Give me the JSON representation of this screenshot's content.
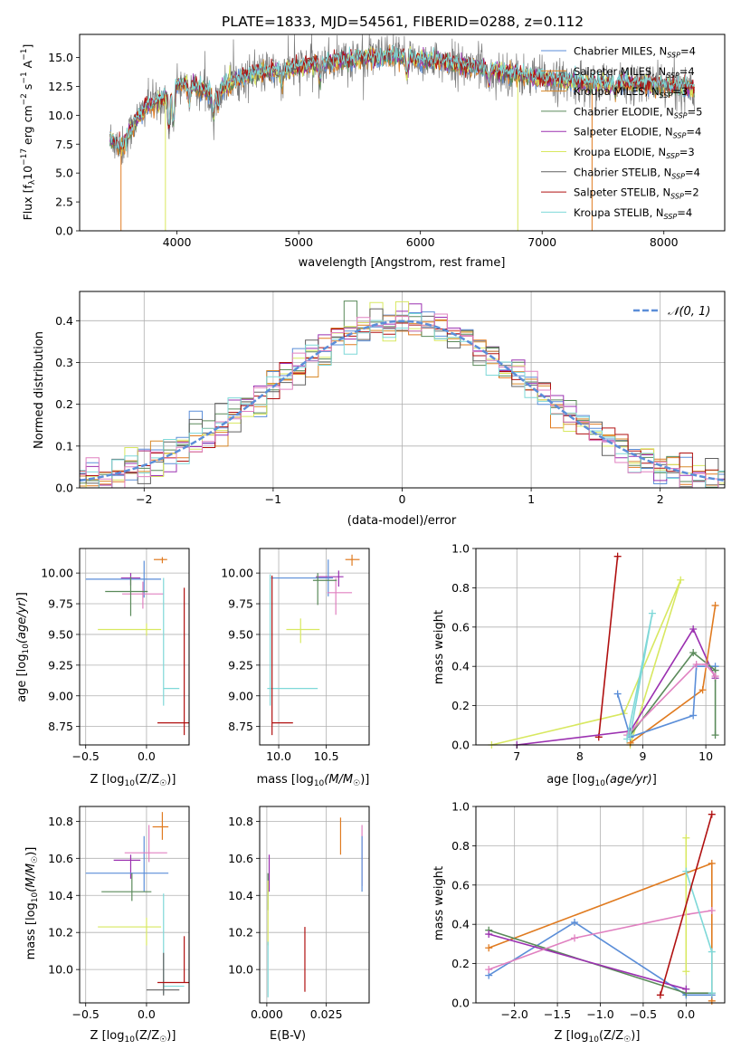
{
  "figure_title": "PLATE=1833, MJD=54561, FIBERID=0288, z=0.112",
  "colors": {
    "chabrier_miles": "#5b8ed8",
    "salpeter_miles": "#e07b20",
    "kroupa_miles": "#d98a2a",
    "chabrier_elodie": "#5a8a5a",
    "salpeter_elodie": "#9b30b0",
    "kroupa_elodie": "#d8e860",
    "chabrier_stelib": "#606060",
    "salpeter_stelib": "#b01010",
    "kroupa_stelib": "#7ed8d8",
    "pink": "#e080c0",
    "grey_spectrum": "#7a7a7a"
  },
  "chart_data": [
    {
      "id": "spectrum",
      "type": "line",
      "xlabel": "wavelength [Angstrom, rest frame]",
      "ylabel": "Flux [f_λ 10^-17 erg cm^-2 s^-1 A^-1]",
      "xlim": [
        3200,
        8500
      ],
      "ylim": [
        0,
        17
      ],
      "xticks": [
        4000,
        5000,
        6000,
        7000,
        8000
      ],
      "yticks": [
        0.0,
        2.5,
        5.0,
        7.5,
        10.0,
        12.5,
        15.0
      ],
      "legend_position": "upper-right",
      "legend": [
        {
          "label": "Chabrier MILES, N_SSP=4",
          "color": "#5b8ed8"
        },
        {
          "label": "Salpeter MILES, N_SSP=4",
          "color": "#e07b20"
        },
        {
          "label": "Kroupa MILES, N_SSP=3",
          "color": "#d98a2a"
        },
        {
          "label": "Chabrier ELODIE, N_SSP=5",
          "color": "#5a8a5a"
        },
        {
          "label": "Salpeter ELODIE, N_SSP=4",
          "color": "#9b30b0"
        },
        {
          "label": "Kroupa ELODIE, N_SSP=3",
          "color": "#d8e860"
        },
        {
          "label": "Chabrier STELIB, N_SSP=4",
          "color": "#606060"
        },
        {
          "label": "Salpeter STELIB, N_SSP=2",
          "color": "#b01010"
        },
        {
          "label": "Kroupa STELIB, N_SSP=4",
          "color": "#7ed8d8"
        }
      ],
      "continuum": [
        [
          3450,
          8.0
        ],
        [
          3550,
          7.2
        ],
        [
          3650,
          9.3
        ],
        [
          3750,
          10.8
        ],
        [
          3850,
          11.2
        ],
        [
          3950,
          12.3
        ],
        [
          4050,
          12.8
        ],
        [
          4150,
          12.4
        ],
        [
          4300,
          11.9
        ],
        [
          4500,
          13.2
        ],
        [
          4700,
          13.7
        ],
        [
          4860,
          13.8
        ],
        [
          5000,
          14.2
        ],
        [
          5200,
          14.5
        ],
        [
          5400,
          14.8
        ],
        [
          5600,
          15.0
        ],
        [
          5800,
          15.1
        ],
        [
          6000,
          14.9
        ],
        [
          6200,
          14.6
        ],
        [
          6400,
          14.2
        ],
        [
          6563,
          14.0
        ],
        [
          6700,
          13.7
        ],
        [
          6900,
          13.3
        ],
        [
          7100,
          13.1
        ],
        [
          7300,
          12.8
        ],
        [
          7600,
          12.8
        ],
        [
          7900,
          12.7
        ],
        [
          8250,
          12.3
        ]
      ]
    },
    {
      "id": "residuals",
      "type": "histogram",
      "xlabel": "(data-model)/error",
      "ylabel": "Normed distribution",
      "xlim": [
        -2.5,
        2.5
      ],
      "ylim": [
        0,
        0.47
      ],
      "xticks": [
        -2,
        -1,
        0,
        1,
        2
      ],
      "yticks": [
        0.0,
        0.1,
        0.2,
        0.3,
        0.4
      ],
      "legend": [
        {
          "label": "N(0,1)",
          "color": "#5b8ed8",
          "style": "dashed"
        }
      ],
      "legend_position": "upper-right",
      "bin_width": 0.1
    },
    {
      "id": "age_vs_Z",
      "type": "scatter",
      "xlabel": "Z [log10(Z/Z☉)]",
      "ylabel": "age [log10(age/yr)]",
      "xlim": [
        -0.55,
        0.35
      ],
      "ylim": [
        8.6,
        10.2
      ],
      "xticks": [
        -0.5,
        0.0
      ],
      "yticks": [
        8.75,
        9.0,
        9.25,
        9.5,
        9.75,
        10.0
      ],
      "points": [
        {
          "x": 0.13,
          "y": 10.11,
          "xerr": [
            0.07,
            0.04
          ],
          "yerr": [
            0.03,
            0.02
          ],
          "color": "#e07b20"
        },
        {
          "x": -0.13,
          "y": 9.96,
          "xerr": [
            0.08,
            0.08
          ],
          "yerr": [
            0.06,
            0.04
          ],
          "color": "#9b30b0"
        },
        {
          "x": -0.02,
          "y": 9.95,
          "xerr": [
            0.48,
            0.14
          ],
          "yerr": [
            0.15,
            0.15
          ],
          "color": "#5b8ed8"
        },
        {
          "x": -0.03,
          "y": 9.83,
          "xerr": [
            0.17,
            0.17
          ],
          "yerr": [
            0.12,
            0.1
          ],
          "color": "#e080c0"
        },
        {
          "x": -0.13,
          "y": 9.85,
          "xerr": [
            0.21,
            0.14
          ],
          "yerr": [
            0.2,
            0.12
          ],
          "color": "#5a8a5a"
        },
        {
          "x": 0.0,
          "y": 9.54,
          "xerr": [
            0.4,
            0.12
          ],
          "yerr": [
            0.05,
            0.05
          ],
          "color": "#d8e860"
        },
        {
          "x": 0.14,
          "y": 9.06,
          "xerr": [
            0.0,
            0.13
          ],
          "yerr": [
            0.14,
            0.9
          ],
          "color": "#7ed8d8"
        },
        {
          "x": 0.31,
          "y": 8.78,
          "xerr": [
            0.22,
            0.05
          ],
          "yerr": [
            0.1,
            1.1
          ],
          "color": "#b01010"
        }
      ]
    },
    {
      "id": "age_vs_mass",
      "type": "scatter",
      "xlabel": "mass [log10(M/M☉)]",
      "ylabel": "",
      "xlim": [
        9.8,
        10.95
      ],
      "ylim": [
        8.6,
        10.2
      ],
      "xticks": [
        10.0,
        10.5
      ],
      "yticks": [
        8.75,
        9.0,
        9.25,
        9.5,
        9.75,
        10.0
      ],
      "points": [
        {
          "x": 10.77,
          "y": 10.11,
          "xerr": [
            0.07,
            0.08
          ],
          "yerr": [
            0.05,
            0.04
          ],
          "color": "#e07b20"
        },
        {
          "x": 10.63,
          "y": 9.97,
          "xerr": [
            0.24,
            0.05
          ],
          "yerr": [
            0.08,
            0.05
          ],
          "color": "#9b30b0"
        },
        {
          "x": 10.52,
          "y": 9.96,
          "xerr": [
            0.6,
            0.05
          ],
          "yerr": [
            0.15,
            0.15
          ],
          "color": "#5b8ed8"
        },
        {
          "x": 10.6,
          "y": 9.84,
          "xerr": [
            0.09,
            0.17
          ],
          "yerr": [
            0.18,
            0.12
          ],
          "color": "#e080c0"
        },
        {
          "x": 10.41,
          "y": 9.94,
          "xerr": [
            0.05,
            0.2
          ],
          "yerr": [
            0.2,
            0.06
          ],
          "color": "#5a8a5a"
        },
        {
          "x": 10.23,
          "y": 9.54,
          "xerr": [
            0.15,
            0.2
          ],
          "yerr": [
            0.11,
            0.09
          ],
          "color": "#d8e860"
        },
        {
          "x": 9.91,
          "y": 9.06,
          "xerr": [
            0.03,
            0.5
          ],
          "yerr": [
            0.14,
            0.93
          ],
          "color": "#7ed8d8"
        },
        {
          "x": 9.93,
          "y": 8.78,
          "xerr": [
            0.0,
            0.22
          ],
          "yerr": [
            0.1,
            1.2
          ],
          "color": "#b01010"
        }
      ]
    },
    {
      "id": "weight_vs_age",
      "type": "line",
      "xlabel": "age [log10(age/yr)]",
      "ylabel": "mass weight",
      "xlim": [
        6.35,
        10.3
      ],
      "ylim": [
        0,
        1
      ],
      "xticks": [
        7,
        8,
        9,
        10
      ],
      "yticks": [
        0.0,
        0.2,
        0.4,
        0.6,
        0.8,
        1.0
      ],
      "series": [
        {
          "color": "#d8e860",
          "points": [
            [
              6.6,
              0.0
            ],
            [
              8.7,
              0.16
            ],
            [
              9.6,
              0.84
            ],
            [
              8.8,
              0.0
            ]
          ]
        },
        {
          "color": "#b01010",
          "points": [
            [
              8.3,
              0.04
            ],
            [
              8.6,
              0.96
            ]
          ]
        },
        {
          "color": "#9b30b0",
          "points": [
            [
              7.0,
              0.0
            ],
            [
              8.8,
              0.07
            ],
            [
              9.8,
              0.59
            ],
            [
              10.15,
              0.34
            ]
          ]
        },
        {
          "color": "#e07b20",
          "points": [
            [
              8.8,
              0.01
            ],
            [
              9.95,
              0.28
            ],
            [
              10.15,
              0.71
            ]
          ]
        },
        {
          "color": "#5b8ed8",
          "points": [
            [
              8.6,
              0.26
            ],
            [
              8.8,
              0.04
            ],
            [
              9.8,
              0.15
            ],
            [
              9.85,
              0.4
            ],
            [
              10.15,
              0.4
            ]
          ]
        },
        {
          "color": "#5a8a5a",
          "points": [
            [
              8.8,
              0.05
            ],
            [
              9.8,
              0.47
            ],
            [
              10.15,
              0.38
            ],
            [
              10.15,
              0.05
            ]
          ]
        },
        {
          "color": "#e080c0",
          "points": [
            [
              8.75,
              0.05
            ],
            [
              9.85,
              0.41
            ],
            [
              10.0,
              0.41
            ],
            [
              10.15,
              0.35
            ]
          ]
        },
        {
          "color": "#7ed8d8",
          "points": [
            [
              8.8,
              0.05
            ],
            [
              9.15,
              0.67
            ],
            [
              8.75,
              0.03
            ]
          ]
        }
      ]
    },
    {
      "id": "mass_vs_Z",
      "type": "scatter",
      "xlabel": "Z [log10(Z/Z☉)]",
      "ylabel": "mass [log10(M/M☉)]",
      "xlim": [
        -0.55,
        0.35
      ],
      "ylim": [
        9.82,
        10.88
      ],
      "xticks": [
        -0.5,
        0.0
      ],
      "yticks": [
        10.0,
        10.2,
        10.4,
        10.6,
        10.8
      ],
      "points": [
        {
          "x": 0.13,
          "y": 10.77,
          "xerr": [
            0.08,
            0.05
          ],
          "yerr": [
            0.07,
            0.08
          ],
          "color": "#e07b20"
        },
        {
          "x": -0.13,
          "y": 10.59,
          "xerr": [
            0.14,
            0.08
          ],
          "yerr": [
            0.1,
            0.03
          ],
          "color": "#9b30b0"
        },
        {
          "x": -0.02,
          "y": 10.52,
          "xerr": [
            0.48,
            0.2
          ],
          "yerr": [
            0.1,
            0.2
          ],
          "color": "#5b8ed8"
        },
        {
          "x": 0.02,
          "y": 10.63,
          "xerr": [
            0.2,
            0.15
          ],
          "yerr": [
            0.05,
            0.15
          ],
          "color": "#e080c0"
        },
        {
          "x": -0.12,
          "y": 10.42,
          "xerr": [
            0.25,
            0.16
          ],
          "yerr": [
            0.05,
            0.1
          ],
          "color": "#5a8a5a"
        },
        {
          "x": 0.0,
          "y": 10.23,
          "xerr": [
            0.4,
            0.12
          ],
          "yerr": [
            0.1,
            0.05
          ],
          "color": "#d8e860"
        },
        {
          "x": 0.14,
          "y": 9.91,
          "xerr": [
            0.0,
            0.17
          ],
          "yerr": [
            0.04,
            0.5
          ],
          "color": "#7ed8d8"
        },
        {
          "x": 0.14,
          "y": 9.89,
          "xerr": [
            0.14,
            0.13
          ],
          "yerr": [
            0.03,
            0.2
          ],
          "color": "#606060"
        },
        {
          "x": 0.31,
          "y": 9.93,
          "xerr": [
            0.22,
            0.05
          ],
          "yerr": [
            0.0,
            0.25
          ],
          "color": "#b01010"
        }
      ]
    },
    {
      "id": "mass_vs_EBV",
      "type": "scatter",
      "xlabel": "E(B-V)",
      "ylabel": "",
      "xlim": [
        -0.003,
        0.043
      ],
      "ylim": [
        9.82,
        10.88
      ],
      "xticks": [
        0.0,
        0.025
      ],
      "yticks": [
        10.0,
        10.2,
        10.4,
        10.6,
        10.8
      ],
      "points": [
        {
          "x": 0.031,
          "y": 10.72,
          "xerr": [
            0,
            0
          ],
          "yerr": [
            0.1,
            0.1
          ],
          "color": "#e07b20"
        },
        {
          "x": 0.04,
          "y": 10.6,
          "xerr": [
            0,
            0
          ],
          "yerr": [
            0.15,
            0.18
          ],
          "color": "#e080c0"
        },
        {
          "x": 0.04,
          "y": 10.52,
          "xerr": [
            0,
            0
          ],
          "yerr": [
            0.1,
            0.2
          ],
          "color": "#5b8ed8"
        },
        {
          "x": 0.001,
          "y": 10.52,
          "xerr": [
            0,
            0
          ],
          "yerr": [
            0.1,
            0.1
          ],
          "color": "#9b30b0"
        },
        {
          "x": 0.0005,
          "y": 10.42,
          "xerr": [
            0,
            0
          ],
          "yerr": [
            0.1,
            0.1
          ],
          "color": "#5a8a5a"
        },
        {
          "x": 0.0005,
          "y": 10.23,
          "xerr": [
            0,
            0
          ],
          "yerr": [
            0.1,
            0.25
          ],
          "color": "#d8e860"
        },
        {
          "x": 0.0005,
          "y": 9.95,
          "xerr": [
            0,
            0
          ],
          "yerr": [
            0.1,
            0.2
          ],
          "color": "#7ed8d8"
        },
        {
          "x": 0.016,
          "y": 9.93,
          "xerr": [
            0,
            0
          ],
          "yerr": [
            0.05,
            0.3
          ],
          "color": "#b01010"
        }
      ]
    },
    {
      "id": "weight_vs_Z",
      "type": "line",
      "xlabel": "Z [log10(Z/Z☉)]",
      "ylabel": "mass weight",
      "xlim": [
        -2.45,
        0.45
      ],
      "ylim": [
        0,
        1
      ],
      "xticks": [
        -2.0,
        -1.5,
        -1.0,
        -0.5,
        0.0
      ],
      "yticks": [
        0.0,
        0.2,
        0.4,
        0.6,
        0.8,
        1.0
      ],
      "series": [
        {
          "color": "#e07b20",
          "points": [
            [
              -2.3,
              0.28
            ],
            [
              0.3,
              0.71
            ],
            [
              0.3,
              0.01
            ]
          ]
        },
        {
          "color": "#5b8ed8",
          "points": [
            [
              -2.3,
              0.14
            ],
            [
              -1.3,
              0.41
            ],
            [
              0.0,
              0.04
            ],
            [
              0.3,
              0.04
            ]
          ]
        },
        {
          "color": "#5a8a5a",
          "points": [
            [
              -2.3,
              0.37
            ],
            [
              0.0,
              0.05
            ],
            [
              0.3,
              0.05
            ]
          ]
        },
        {
          "color": "#9b30b0",
          "points": [
            [
              -2.3,
              0.35
            ],
            [
              0.0,
              0.07
            ]
          ]
        },
        {
          "color": "#e080c0",
          "points": [
            [
              -2.3,
              0.17
            ],
            [
              -1.3,
              0.33
            ],
            [
              0.0,
              0.45
            ],
            [
              0.3,
              0.47
            ]
          ]
        },
        {
          "color": "#d8e860",
          "points": [
            [
              0.0,
              0.84
            ],
            [
              0.0,
              0.16
            ]
          ]
        },
        {
          "color": "#7ed8d8",
          "points": [
            [
              0.0,
              0.67
            ],
            [
              0.3,
              0.26
            ],
            [
              0.3,
              0.05
            ]
          ]
        },
        {
          "color": "#b01010",
          "points": [
            [
              -0.3,
              0.04
            ],
            [
              0.3,
              0.96
            ]
          ]
        }
      ]
    }
  ]
}
